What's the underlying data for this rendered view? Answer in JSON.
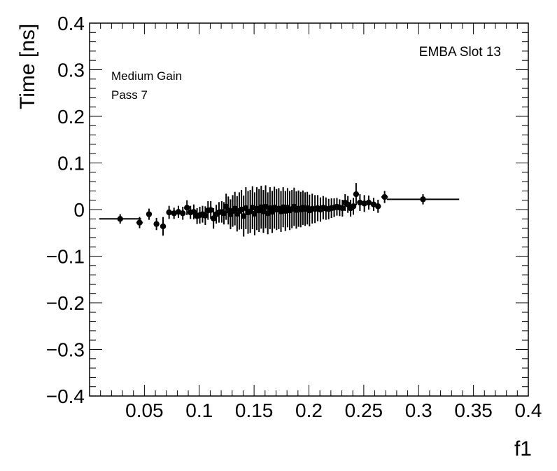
{
  "chart_data": {
    "type": "scatter",
    "xlabel": "f1",
    "ylabel": "Time [ns]",
    "xlim": [
      0.0,
      0.4
    ],
    "ylim": [
      -0.4,
      0.4
    ],
    "x_ticks": [
      {
        "value": 0.05,
        "label": "0.05"
      },
      {
        "value": 0.1,
        "label": "0.1"
      },
      {
        "value": 0.15,
        "label": "0.15"
      },
      {
        "value": 0.2,
        "label": "0.2"
      },
      {
        "value": 0.25,
        "label": "0.25"
      },
      {
        "value": 0.3,
        "label": "0.3"
      },
      {
        "value": 0.35,
        "label": "0.35"
      },
      {
        "value": 0.4,
        "label": "0.4"
      }
    ],
    "y_ticks": [
      {
        "value": 0.4,
        "label": "0.4"
      },
      {
        "value": 0.3,
        "label": "0.3"
      },
      {
        "value": 0.2,
        "label": "0.2"
      },
      {
        "value": 0.1,
        "label": "0.1"
      },
      {
        "value": 0.0,
        "label": "0"
      },
      {
        "value": -0.1,
        "label": "−0.1"
      },
      {
        "value": -0.2,
        "label": "−0.2"
      },
      {
        "value": -0.3,
        "label": "−0.3"
      },
      {
        "value": -0.4,
        "label": "−0.4"
      }
    ],
    "grid": false,
    "annotations": {
      "top_right": "EMBA Slot 13",
      "top_left": [
        "Medium Gain",
        "Pass 7"
      ]
    },
    "points": [
      {
        "x": 0.0279,
        "xerr": 0.0191,
        "y": -0.02,
        "yerr": 0.01
      },
      {
        "x": 0.0456,
        "xerr": 0.003,
        "y": -0.028,
        "yerr": 0.012
      },
      {
        "x": 0.0542,
        "xerr": 0.0025,
        "y": -0.01,
        "yerr": 0.012
      },
      {
        "x": 0.061,
        "xerr": 0.002,
        "y": -0.031,
        "yerr": 0.013
      },
      {
        "x": 0.067,
        "xerr": 0.002,
        "y": -0.036,
        "yerr": 0.02
      },
      {
        "x": 0.0725,
        "xerr": 0.0015,
        "y": -0.006,
        "yerr": 0.014
      },
      {
        "x": 0.077,
        "xerr": 0.0012,
        "y": -0.008,
        "yerr": 0.012
      },
      {
        "x": 0.081,
        "xerr": 0.0012,
        "y": -0.005,
        "yerr": 0.013
      },
      {
        "x": 0.085,
        "xerr": 0.0012,
        "y": -0.008,
        "yerr": 0.014
      },
      {
        "x": 0.0888,
        "xerr": 0.001,
        "y": 0.004,
        "yerr": 0.016
      },
      {
        "x": 0.092,
        "xerr": 0.001,
        "y": -0.006,
        "yerr": 0.014
      },
      {
        "x": 0.095,
        "xerr": 0.001,
        "y": -0.005,
        "yerr": 0.016
      },
      {
        "x": 0.098,
        "xerr": 0.001,
        "y": -0.014,
        "yerr": 0.017
      },
      {
        "x": 0.1005,
        "xerr": 0.001,
        "y": -0.012,
        "yerr": 0.018
      },
      {
        "x": 0.103,
        "xerr": 0.001,
        "y": -0.01,
        "yerr": 0.018
      },
      {
        "x": 0.1055,
        "xerr": 0.001,
        "y": -0.013,
        "yerr": 0.02
      },
      {
        "x": 0.108,
        "xerr": 0.001,
        "y": -0.002,
        "yerr": 0.02
      },
      {
        "x": 0.1105,
        "xerr": 0.001,
        "y": -0.001,
        "yerr": 0.019
      },
      {
        "x": 0.113,
        "xerr": 0.001,
        "y": -0.019,
        "yerr": 0.022
      },
      {
        "x": 0.1155,
        "xerr": 0.001,
        "y": -0.01,
        "yerr": 0.02
      },
      {
        "x": 0.118,
        "xerr": 0.001,
        "y": -0.006,
        "yerr": 0.022
      },
      {
        "x": 0.1205,
        "xerr": 0.001,
        "y": -0.005,
        "yerr": 0.023
      },
      {
        "x": 0.1225,
        "xerr": 0.001,
        "y": -0.008,
        "yerr": 0.024
      },
      {
        "x": 0.1245,
        "xerr": 0.001,
        "y": 0.006,
        "yerr": 0.028
      },
      {
        "x": 0.1265,
        "xerr": 0.001,
        "y": -0.002,
        "yerr": 0.03
      },
      {
        "x": 0.1285,
        "xerr": 0.001,
        "y": -0.01,
        "yerr": 0.032
      },
      {
        "x": 0.1305,
        "xerr": 0.001,
        "y": -0.003,
        "yerr": 0.034
      },
      {
        "x": 0.1325,
        "xerr": 0.001,
        "y": 0.002,
        "yerr": 0.036
      },
      {
        "x": 0.1345,
        "xerr": 0.001,
        "y": -0.009,
        "yerr": 0.038
      },
      {
        "x": 0.1365,
        "xerr": 0.001,
        "y": -0.003,
        "yerr": 0.04
      },
      {
        "x": 0.1385,
        "xerr": 0.001,
        "y": 0.0,
        "yerr": 0.042
      },
      {
        "x": 0.1405,
        "xerr": 0.001,
        "y": -0.014,
        "yerr": 0.044
      },
      {
        "x": 0.1425,
        "xerr": 0.001,
        "y": 0.003,
        "yerr": 0.045
      },
      {
        "x": 0.1445,
        "xerr": 0.001,
        "y": -0.006,
        "yerr": 0.046
      },
      {
        "x": 0.1465,
        "xerr": 0.001,
        "y": -0.004,
        "yerr": 0.046
      },
      {
        "x": 0.1485,
        "xerr": 0.001,
        "y": 0.004,
        "yerr": 0.046
      },
      {
        "x": 0.1505,
        "xerr": 0.001,
        "y": -0.009,
        "yerr": 0.046
      },
      {
        "x": 0.1525,
        "xerr": 0.001,
        "y": 0.002,
        "yerr": 0.046
      },
      {
        "x": 0.1545,
        "xerr": 0.001,
        "y": -0.002,
        "yerr": 0.046
      },
      {
        "x": 0.1565,
        "xerr": 0.001,
        "y": 0.005,
        "yerr": 0.046
      },
      {
        "x": 0.1585,
        "xerr": 0.001,
        "y": -0.004,
        "yerr": 0.046
      },
      {
        "x": 0.1605,
        "xerr": 0.001,
        "y": 0.006,
        "yerr": 0.046
      },
      {
        "x": 0.1625,
        "xerr": 0.001,
        "y": -0.008,
        "yerr": 0.045
      },
      {
        "x": 0.1645,
        "xerr": 0.001,
        "y": 0.003,
        "yerr": 0.045
      },
      {
        "x": 0.1665,
        "xerr": 0.001,
        "y": -0.005,
        "yerr": 0.045
      },
      {
        "x": 0.1685,
        "xerr": 0.001,
        "y": 0.004,
        "yerr": 0.045
      },
      {
        "x": 0.1705,
        "xerr": 0.001,
        "y": 0.0,
        "yerr": 0.044
      },
      {
        "x": 0.1725,
        "xerr": 0.001,
        "y": 0.002,
        "yerr": 0.044
      },
      {
        "x": 0.1745,
        "xerr": 0.001,
        "y": -0.004,
        "yerr": 0.044
      },
      {
        "x": 0.1765,
        "xerr": 0.001,
        "y": 0.005,
        "yerr": 0.043
      },
      {
        "x": 0.1785,
        "xerr": 0.001,
        "y": -0.003,
        "yerr": 0.043
      },
      {
        "x": 0.1805,
        "xerr": 0.001,
        "y": 0.004,
        "yerr": 0.042
      },
      {
        "x": 0.1825,
        "xerr": 0.001,
        "y": -0.002,
        "yerr": 0.042
      },
      {
        "x": 0.1845,
        "xerr": 0.001,
        "y": 0.001,
        "yerr": 0.041
      },
      {
        "x": 0.1865,
        "xerr": 0.001,
        "y": 0.006,
        "yerr": 0.041
      },
      {
        "x": 0.1885,
        "xerr": 0.001,
        "y": -0.001,
        "yerr": 0.04
      },
      {
        "x": 0.1905,
        "xerr": 0.001,
        "y": 0.002,
        "yerr": 0.039
      },
      {
        "x": 0.1925,
        "xerr": 0.001,
        "y": 0.0,
        "yerr": 0.038
      },
      {
        "x": 0.1945,
        "xerr": 0.001,
        "y": 0.004,
        "yerr": 0.037
      },
      {
        "x": 0.1965,
        "xerr": 0.001,
        "y": 0.001,
        "yerr": 0.036
      },
      {
        "x": 0.1985,
        "xerr": 0.001,
        "y": 0.003,
        "yerr": 0.035
      },
      {
        "x": 0.2005,
        "xerr": 0.001,
        "y": -0.002,
        "yerr": 0.034
      },
      {
        "x": 0.203,
        "xerr": 0.001,
        "y": 0.002,
        "yerr": 0.032
      },
      {
        "x": 0.2055,
        "xerr": 0.001,
        "y": 0.001,
        "yerr": 0.03
      },
      {
        "x": 0.208,
        "xerr": 0.001,
        "y": 0.003,
        "yerr": 0.028
      },
      {
        "x": 0.2105,
        "xerr": 0.001,
        "y": 0.0,
        "yerr": 0.026
      },
      {
        "x": 0.213,
        "xerr": 0.001,
        "y": 0.004,
        "yerr": 0.025
      },
      {
        "x": 0.2155,
        "xerr": 0.001,
        "y": 0.002,
        "yerr": 0.024
      },
      {
        "x": 0.218,
        "xerr": 0.001,
        "y": 0.001,
        "yerr": 0.022
      },
      {
        "x": 0.2205,
        "xerr": 0.001,
        "y": 0.003,
        "yerr": 0.021
      },
      {
        "x": 0.223,
        "xerr": 0.001,
        "y": 0.004,
        "yerr": 0.02
      },
      {
        "x": 0.2255,
        "xerr": 0.001,
        "y": 0.006,
        "yerr": 0.019
      },
      {
        "x": 0.228,
        "xerr": 0.001,
        "y": 0.004,
        "yerr": 0.018
      },
      {
        "x": 0.2305,
        "xerr": 0.001,
        "y": 0.003,
        "yerr": 0.018
      },
      {
        "x": 0.233,
        "xerr": 0.001,
        "y": 0.015,
        "yerr": 0.018
      },
      {
        "x": 0.2355,
        "xerr": 0.001,
        "y": 0.011,
        "yerr": 0.018
      },
      {
        "x": 0.238,
        "xerr": 0.001,
        "y": 0.003,
        "yerr": 0.018
      },
      {
        "x": 0.2405,
        "xerr": 0.001,
        "y": 0.007,
        "yerr": 0.018
      },
      {
        "x": 0.243,
        "xerr": 0.001,
        "y": 0.033,
        "yerr": 0.024
      },
      {
        "x": 0.2465,
        "xerr": 0.0015,
        "y": 0.015,
        "yerr": 0.018
      },
      {
        "x": 0.2505,
        "xerr": 0.0015,
        "y": 0.013,
        "yerr": 0.018
      },
      {
        "x": 0.2545,
        "xerr": 0.0015,
        "y": 0.015,
        "yerr": 0.015
      },
      {
        "x": 0.259,
        "xerr": 0.002,
        "y": 0.011,
        "yerr": 0.014
      },
      {
        "x": 0.263,
        "xerr": 0.002,
        "y": 0.007,
        "yerr": 0.014
      },
      {
        "x": 0.269,
        "xerr": 0.003,
        "y": 0.027,
        "yerr": 0.013
      },
      {
        "x": 0.304,
        "xerr": 0.033,
        "y": 0.022,
        "yerr": 0.011
      }
    ]
  }
}
